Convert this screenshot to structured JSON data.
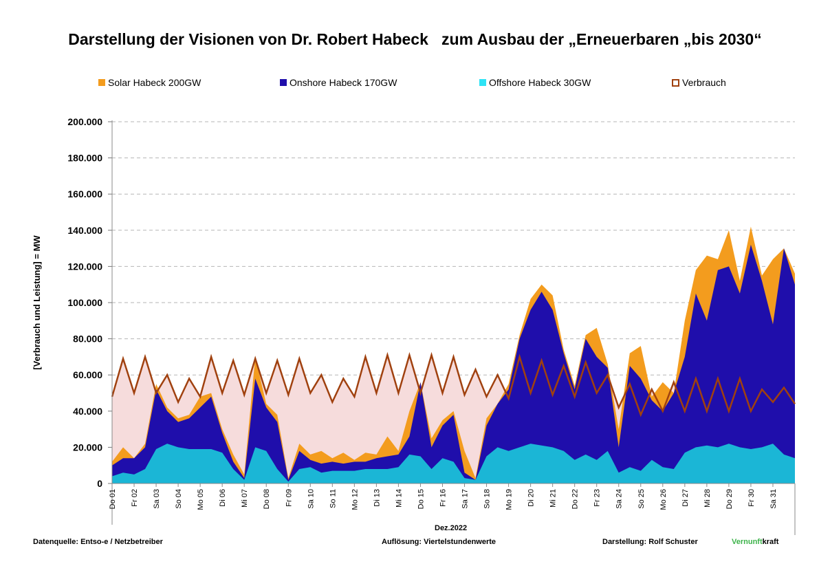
{
  "title": "Darstellung der Visionen von Dr. Robert Habeck   zum Ausbau der „Erneuerbaren „bis 2030“",
  "legend": [
    {
      "label": "Solar Habeck 200GW",
      "color": "#f39c1e"
    },
    {
      "label": "Onshore Habeck 170GW",
      "color": "#1f0eab"
    },
    {
      "label": "Offshore Habeck 30GW",
      "color": "#2ee3f5"
    },
    {
      "label": "Verbrauch",
      "color": "#a0410f"
    }
  ],
  "footer": {
    "source": "Datenquelle: Entso-e  / Netzbetreiber",
    "resolution": "Auflösung: Viertelstundenwerte",
    "author": "Darstellung:  Rolf Schuster",
    "brand_green": "Vernunft",
    "brand_black": "kraft"
  },
  "chart_data": {
    "type": "area",
    "xlabel": "Dez.2022",
    "ylabel": "[Verbrauch und Leistung] = MW",
    "ylim": [
      0,
      200000
    ],
    "y_ticks": [
      "0",
      "20.000",
      "40.000",
      "60.000",
      "80.000",
      "100.000",
      "120.000",
      "140.000",
      "160.000",
      "180.000",
      "200.000"
    ],
    "grid": true,
    "legend_position": "top",
    "categories": [
      "Do 01",
      "Fr 02",
      "Sa 03",
      "So 04",
      "Mo 05",
      "Di 06",
      "Mi 07",
      "Do 08",
      "Fr 09",
      "Sa 10",
      "So 11",
      "Mo 12",
      "Di 13",
      "Mi 14",
      "Do 15",
      "Fr 16",
      "Sa 17",
      "So 18",
      "Mo 19",
      "Di 20",
      "Mi 21",
      "Do 22",
      "Fr 23",
      "Sa 24",
      "So 25",
      "Mo 26",
      "Di 27",
      "Mi 28",
      "Do 29",
      "Fr 30",
      "Sa 31"
    ],
    "colors": {
      "solar": "#f39c1e",
      "onshore": "#1f0eab",
      "offshore": "#1bb6d6",
      "verbrauch": "#a0410f",
      "fill": "#f6dcdc"
    },
    "series": [
      {
        "name": "Offshore Habeck 30GW",
        "x": [
          0,
          0.5,
          1,
          1.5,
          2,
          2.5,
          3,
          3.5,
          4,
          4.5,
          5,
          5.5,
          6,
          6.5,
          7,
          7.5,
          8,
          8.5,
          9,
          9.5,
          10,
          10.5,
          11,
          11.5,
          12,
          12.5,
          13,
          13.5,
          14,
          14.5,
          15,
          15.5,
          16,
          16.5,
          17,
          17.5,
          18,
          18.5,
          19,
          19.5,
          20,
          20.5,
          21,
          21.5,
          22,
          22.5,
          23,
          23.5,
          24,
          24.5,
          25,
          25.5,
          26,
          26.5,
          27,
          27.5,
          28,
          28.5,
          29,
          29.5,
          30,
          30.5,
          31
        ],
        "values": [
          4000,
          6000,
          5000,
          8000,
          19000,
          22000,
          20000,
          19000,
          19000,
          19000,
          17000,
          8000,
          2000,
          20000,
          18000,
          8000,
          1000,
          8000,
          9000,
          6000,
          7000,
          7000,
          7000,
          8000,
          8000,
          8000,
          9000,
          16000,
          15000,
          8000,
          14000,
          12000,
          3000,
          2000,
          15000,
          20000,
          18000,
          20000,
          22000,
          21000,
          20000,
          18000,
          13000,
          16000,
          13000,
          18000,
          6000,
          9000,
          7000,
          13000,
          9000,
          8000,
          17000,
          20000,
          21000,
          20000,
          22000,
          20000,
          19000,
          20000,
          22000,
          16000,
          14000
        ]
      },
      {
        "name": "Onshore Habeck 170GW",
        "x": [
          0,
          0.5,
          1,
          1.5,
          2,
          2.5,
          3,
          3.5,
          4,
          4.5,
          5,
          5.5,
          6,
          6.5,
          7,
          7.5,
          8,
          8.5,
          9,
          9.5,
          10,
          10.5,
          11,
          11.5,
          12,
          12.5,
          13,
          13.5,
          14,
          14.5,
          15,
          15.5,
          16,
          16.5,
          17,
          17.5,
          18,
          18.5,
          19,
          19.5,
          20,
          20.5,
          21,
          21.5,
          22,
          22.5,
          23,
          23.5,
          24,
          24.5,
          25,
          25.5,
          26,
          26.5,
          27,
          27.5,
          28,
          28.5,
          29,
          29.5,
          30,
          30.5,
          31
        ],
        "values": [
          10000,
          14000,
          14000,
          20000,
          52000,
          40000,
          34000,
          36000,
          42000,
          48000,
          28000,
          12000,
          3000,
          58000,
          42000,
          34000,
          2000,
          18000,
          13000,
          11000,
          12000,
          11000,
          12000,
          12000,
          14000,
          15000,
          16000,
          26000,
          56000,
          20000,
          32000,
          38000,
          6000,
          2000,
          32000,
          44000,
          52000,
          80000,
          96000,
          106000,
          96000,
          72000,
          52000,
          80000,
          70000,
          64000,
          20000,
          65000,
          58000,
          46000,
          40000,
          50000,
          70000,
          105000,
          90000,
          118000,
          120000,
          105000,
          132000,
          112000,
          88000,
          130000,
          110000
        ]
      },
      {
        "name": "Solar Habeck 200GW",
        "x": [
          0,
          0.5,
          1,
          1.5,
          2,
          2.5,
          3,
          3.5,
          4,
          4.5,
          5,
          5.5,
          6,
          6.5,
          7,
          7.5,
          8,
          8.5,
          9,
          9.5,
          10,
          10.5,
          11,
          11.5,
          12,
          12.5,
          13,
          13.5,
          14,
          14.5,
          15,
          15.5,
          16,
          16.5,
          17,
          17.5,
          18,
          18.5,
          19,
          19.5,
          20,
          20.5,
          21,
          21.5,
          22,
          22.5,
          23,
          23.5,
          24,
          24.5,
          25,
          25.5,
          26,
          26.5,
          27,
          27.5,
          28,
          28.5,
          29,
          29.5,
          30,
          30.5,
          31
        ],
        "values": [
          12000,
          20000,
          14000,
          22000,
          55000,
          42000,
          36000,
          38000,
          48000,
          50000,
          30000,
          16000,
          5000,
          70000,
          44000,
          38000,
          3000,
          22000,
          16000,
          18000,
          14000,
          17000,
          13000,
          17000,
          16000,
          26000,
          18000,
          40000,
          56000,
          25000,
          35000,
          40000,
          18000,
          3000,
          36000,
          44000,
          55000,
          82000,
          102000,
          110000,
          104000,
          74000,
          54000,
          82000,
          86000,
          66000,
          30000,
          72000,
          76000,
          48000,
          56000,
          50000,
          90000,
          118000,
          126000,
          124000,
          140000,
          112000,
          142000,
          115000,
          124000,
          130000,
          116000
        ]
      },
      {
        "name": "Verbrauch",
        "x": [
          0,
          0.5,
          1,
          1.5,
          2,
          2.5,
          3,
          3.5,
          4,
          4.5,
          5,
          5.5,
          6,
          6.5,
          7,
          7.5,
          8,
          8.5,
          9,
          9.5,
          10,
          10.5,
          11,
          11.5,
          12,
          12.5,
          13,
          13.5,
          14,
          14.5,
          15,
          15.5,
          16,
          16.5,
          17,
          17.5,
          18,
          18.5,
          19,
          19.5,
          20,
          20.5,
          21,
          21.5,
          22,
          22.5,
          23,
          23.5,
          24,
          24.5,
          25,
          25.5,
          26,
          26.5,
          27,
          27.5,
          28,
          28.5,
          29,
          29.5,
          30,
          30.5,
          31
        ],
        "values": [
          48000,
          69000,
          50000,
          70000,
          50000,
          60000,
          45000,
          58000,
          48000,
          70000,
          50000,
          68000,
          49000,
          69000,
          50000,
          68000,
          49000,
          69000,
          50000,
          60000,
          45000,
          58000,
          48000,
          70000,
          50000,
          71000,
          50000,
          71000,
          50000,
          71000,
          50000,
          70000,
          49000,
          63000,
          48000,
          60000,
          47000,
          70000,
          50000,
          68000,
          49000,
          65000,
          48000,
          67000,
          50000,
          60000,
          42000,
          55000,
          38000,
          52000,
          40000,
          56000,
          40000,
          58000,
          40000,
          58000,
          40000,
          58000,
          40000,
          52000,
          45000,
          53000,
          44000
        ]
      }
    ]
  }
}
